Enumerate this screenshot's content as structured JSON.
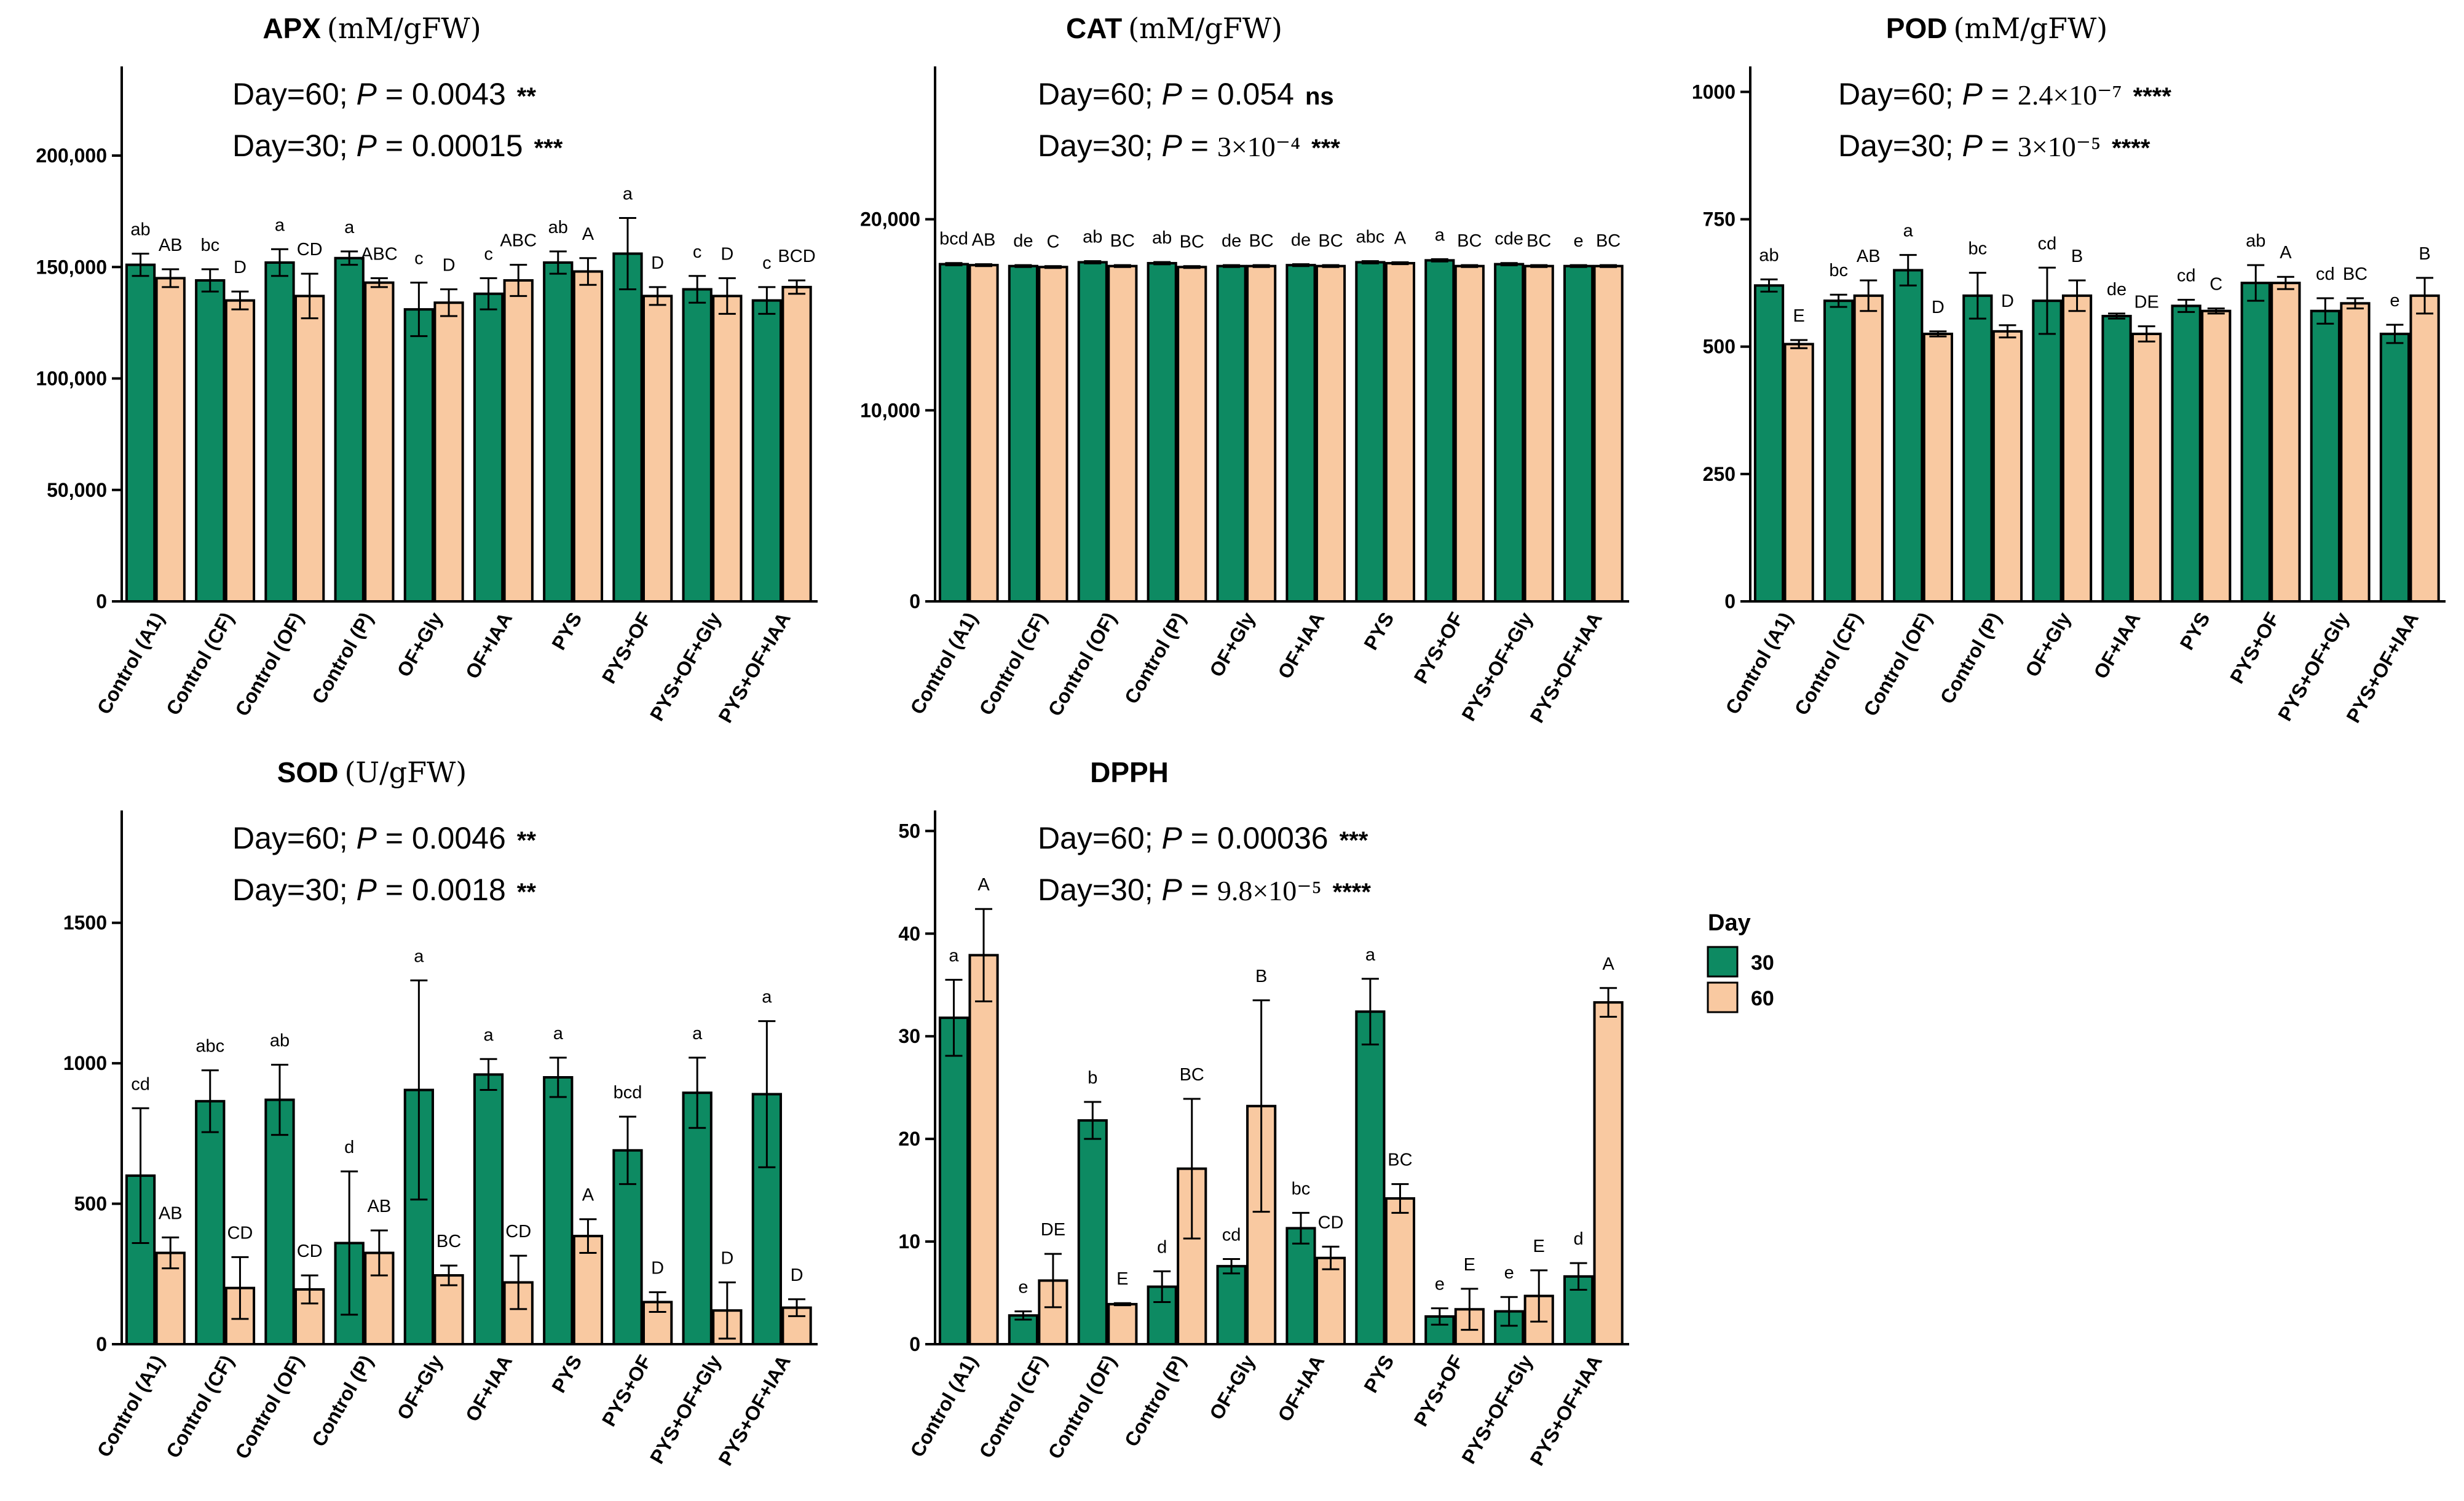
{
  "categories": [
    "Control (A1)",
    "Control (CF)",
    "Control (OF)",
    "Control (P)",
    "OF+Gly",
    "OF+IAA",
    "PYS",
    "PYS+OF",
    "PYS+OF+Gly",
    "PYS+OF+IAA"
  ],
  "legend": {
    "title": "Day",
    "items": [
      {
        "label": "30",
        "color": "#0d8a62"
      },
      {
        "label": "60",
        "color": "#f9c9a1"
      }
    ]
  },
  "chart_data": [
    {
      "type": "bar",
      "title": "APX",
      "unit": "(mM/gFW)",
      "stats": [
        {
          "label": "Day=60;",
          "p_prefix": "P = ",
          "p_value": "0.0043",
          "stars": "**"
        },
        {
          "label": "Day=30;",
          "p_prefix": "P = ",
          "p_value": "0.00015",
          "stars": "***"
        }
      ],
      "ylim": [
        0,
        240000
      ],
      "yticks": [
        0,
        50000,
        100000,
        150000,
        200000
      ],
      "ytick_labels": [
        "0",
        "50,000",
        "100,000",
        "150,000",
        "200,000"
      ],
      "series": [
        {
          "name": "30",
          "color": "#0d8a62",
          "values": [
            151000,
            144000,
            152000,
            154000,
            131000,
            138000,
            152000,
            156000,
            140000,
            135000
          ],
          "errors": [
            5000,
            5000,
            6000,
            3000,
            12000,
            7000,
            5000,
            16000,
            6000,
            6000
          ],
          "letters": [
            "ab",
            "bc",
            "a",
            "a",
            "c",
            "c",
            "ab",
            "a",
            "c",
            "c"
          ]
        },
        {
          "name": "60",
          "color": "#f9c9a1",
          "values": [
            145000,
            135000,
            137000,
            143000,
            134000,
            144000,
            148000,
            137000,
            137000,
            141000
          ],
          "errors": [
            4000,
            4000,
            10000,
            2000,
            6000,
            7000,
            6000,
            4000,
            8000,
            3000
          ],
          "letters": [
            "AB",
            "D",
            "CD",
            "ABC",
            "D",
            "ABC",
            "A",
            "D",
            "D",
            "BCD"
          ]
        }
      ]
    },
    {
      "type": "bar",
      "title": "CAT",
      "unit": "(mM/gFW)",
      "stats": [
        {
          "label": "Day=60;",
          "p_prefix": "P = ",
          "p_value": "0.054",
          "stars": "ns"
        },
        {
          "label": "Day=30;",
          "p_prefix": "P = ",
          "p_value": "3×10⁻⁴",
          "stars": "***"
        }
      ],
      "ylim": [
        0,
        28000
      ],
      "yticks": [
        0,
        10000,
        20000
      ],
      "ytick_labels": [
        "0",
        "10,000",
        "20,000"
      ],
      "series": [
        {
          "name": "30",
          "color": "#0d8a62",
          "values": [
            17650,
            17550,
            17750,
            17700,
            17550,
            17600,
            17750,
            17850,
            17650,
            17550
          ],
          "errors": [
            60,
            50,
            60,
            60,
            50,
            50,
            60,
            60,
            60,
            50
          ],
          "letters": [
            "bcd",
            "de",
            "ab",
            "ab",
            "de",
            "de",
            "abc",
            "a",
            "cde",
            "e"
          ]
        },
        {
          "name": "60",
          "color": "#f9c9a1",
          "values": [
            17600,
            17500,
            17550,
            17500,
            17550,
            17550,
            17700,
            17550,
            17550,
            17550
          ],
          "errors": [
            50,
            50,
            50,
            50,
            50,
            50,
            50,
            50,
            50,
            50
          ],
          "letters": [
            "AB",
            "C",
            "BC",
            "BC",
            "BC",
            "BC",
            "A",
            "BC",
            "BC",
            "BC"
          ]
        }
      ]
    },
    {
      "type": "bar",
      "title": "POD",
      "unit": "(mM/gFW)",
      "stats": [
        {
          "label": "Day=60;",
          "p_prefix": "P = ",
          "p_value": "2.4×10⁻⁷",
          "stars": "****"
        },
        {
          "label": "Day=30;",
          "p_prefix": "P = ",
          "p_value": "3×10⁻⁵",
          "stars": "****"
        }
      ],
      "ylim": [
        0,
        1050
      ],
      "yticks": [
        0,
        250,
        500,
        750,
        1000
      ],
      "ytick_labels": [
        "0",
        "250",
        "500",
        "750",
        "1000"
      ],
      "series": [
        {
          "name": "30",
          "color": "#0d8a62",
          "values": [
            620,
            590,
            650,
            600,
            590,
            560,
            580,
            625,
            570,
            525
          ],
          "errors": [
            12,
            12,
            30,
            45,
            65,
            5,
            12,
            35,
            25,
            18
          ],
          "letters": [
            "ab",
            "bc",
            "a",
            "bc",
            "cd",
            "de",
            "cd",
            "ab",
            "cd",
            "e"
          ]
        },
        {
          "name": "60",
          "color": "#f9c9a1",
          "values": [
            505,
            600,
            525,
            530,
            600,
            525,
            570,
            625,
            585,
            600
          ],
          "errors": [
            8,
            30,
            5,
            12,
            30,
            15,
            5,
            12,
            10,
            35
          ],
          "letters": [
            "E",
            "AB",
            "D",
            "D",
            "B",
            "DE",
            "C",
            "A",
            "BC",
            "B"
          ]
        }
      ]
    },
    {
      "type": "bar",
      "title": "SOD",
      "unit": "(U/gFW)",
      "stats": [
        {
          "label": "Day=60;",
          "p_prefix": "P = ",
          "p_value": "0.0046",
          "stars": "**"
        },
        {
          "label": "Day=30;",
          "p_prefix": "P = ",
          "p_value": "0.0018",
          "stars": "**"
        }
      ],
      "ylim": [
        0,
        1900
      ],
      "yticks": [
        0,
        500,
        1000,
        1500
      ],
      "ytick_labels": [
        "0",
        "500",
        "1000",
        "1500"
      ],
      "series": [
        {
          "name": "30",
          "color": "#0d8a62",
          "values": [
            600,
            865,
            870,
            360,
            905,
            960,
            950,
            690,
            895,
            890
          ],
          "errors": [
            240,
            110,
            125,
            255,
            390,
            55,
            70,
            120,
            125,
            260
          ],
          "letters": [
            "cd",
            "abc",
            "ab",
            "d",
            "a",
            "a",
            "a",
            "bcd",
            "a",
            "a"
          ]
        },
        {
          "name": "60",
          "color": "#f9c9a1",
          "values": [
            325,
            200,
            195,
            325,
            245,
            220,
            385,
            150,
            120,
            130
          ],
          "errors": [
            55,
            110,
            50,
            80,
            35,
            95,
            60,
            35,
            100,
            30
          ],
          "letters": [
            "AB",
            "CD",
            "CD",
            "AB",
            "BC",
            "CD",
            "A",
            "D",
            "D",
            "D"
          ]
        }
      ]
    },
    {
      "type": "bar",
      "title": "DPPH",
      "unit": "",
      "stats": [
        {
          "label": "Day=60;",
          "p_prefix": "P = ",
          "p_value": "0.00036",
          "stars": "***"
        },
        {
          "label": "Day=30;",
          "p_prefix": "P = ",
          "p_value": "9.8×10⁻⁵",
          "stars": "****"
        }
      ],
      "ylim": [
        0,
        52
      ],
      "yticks": [
        0,
        10,
        20,
        30,
        40,
        50
      ],
      "ytick_labels": [
        "0",
        "10",
        "20",
        "30",
        "40",
        "50"
      ],
      "series": [
        {
          "name": "30",
          "color": "#0d8a62",
          "values": [
            31.8,
            2.8,
            21.8,
            5.6,
            7.6,
            11.3,
            32.4,
            2.7,
            3.2,
            6.6
          ],
          "errors": [
            3.7,
            0.4,
            1.8,
            1.5,
            0.7,
            1.5,
            3.2,
            0.8,
            1.4,
            1.3
          ],
          "letters": [
            "a",
            "e",
            "b",
            "d",
            "cd",
            "bc",
            "a",
            "e",
            "e",
            "d"
          ]
        },
        {
          "name": "60",
          "color": "#f9c9a1",
          "values": [
            37.9,
            6.2,
            3.9,
            17.1,
            23.2,
            8.4,
            14.2,
            3.4,
            4.7,
            33.3
          ],
          "errors": [
            4.5,
            2.6,
            0.1,
            6.8,
            10.3,
            1.1,
            1.4,
            2.0,
            2.5,
            1.4
          ],
          "letters": [
            "A",
            "DE",
            "E",
            "BC",
            "B",
            "CD",
            "BC",
            "E",
            "E",
            "A"
          ]
        }
      ]
    }
  ]
}
